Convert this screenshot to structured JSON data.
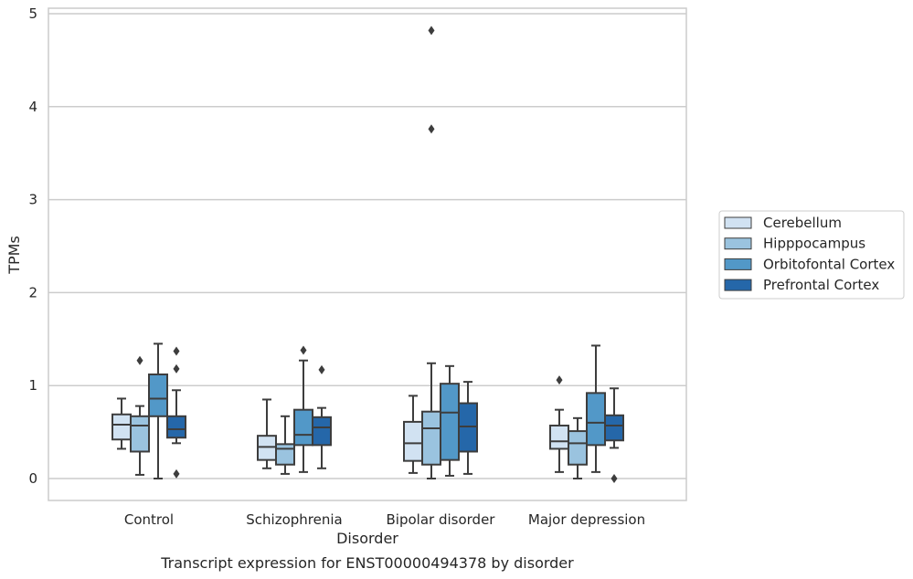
{
  "chart_data": {
    "type": "box",
    "xlabel": "Disorder",
    "ylabel": "TPMs",
    "caption": "Transcript expression for ENST00000494378 by disorder",
    "categories": [
      "Control",
      "Schizophrenia",
      "Bipolar disorder",
      "Major depression"
    ],
    "yticks": [
      0,
      1,
      2,
      3,
      4,
      5
    ],
    "ylim": [
      -0.23,
      5.07
    ],
    "grid": "horizontal",
    "legend_position": "right",
    "series": [
      {
        "name": "Cerebellum",
        "color": "#d1e2f2",
        "boxes": [
          {
            "whislo": 0.32,
            "q1": 0.42,
            "med": 0.58,
            "q3": 0.69,
            "whishi": 0.86,
            "fliers": []
          },
          {
            "whislo": 0.11,
            "q1": 0.2,
            "med": 0.34,
            "q3": 0.46,
            "whishi": 0.85,
            "fliers": []
          },
          {
            "whislo": 0.06,
            "q1": 0.19,
            "med": 0.38,
            "q3": 0.61,
            "whishi": 0.89,
            "fliers": []
          },
          {
            "whislo": 0.07,
            "q1": 0.32,
            "med": 0.4,
            "q3": 0.57,
            "whishi": 0.74,
            "fliers": [
              1.06
            ]
          }
        ]
      },
      {
        "name": "Hipppocampus",
        "color": "#9ac3df",
        "boxes": [
          {
            "whislo": 0.04,
            "q1": 0.29,
            "med": 0.57,
            "q3": 0.67,
            "whishi": 0.78,
            "fliers": [
              1.27
            ]
          },
          {
            "whislo": 0.05,
            "q1": 0.15,
            "med": 0.32,
            "q3": 0.37,
            "whishi": 0.67,
            "fliers": []
          },
          {
            "whislo": 0.0,
            "q1": 0.15,
            "med": 0.54,
            "q3": 0.72,
            "whishi": 1.24,
            "fliers": [
              4.82,
              3.76
            ]
          },
          {
            "whislo": 0.0,
            "q1": 0.15,
            "med": 0.38,
            "q3": 0.51,
            "whishi": 0.65,
            "fliers": []
          }
        ]
      },
      {
        "name": "Orbitofontal Cortex",
        "color": "#5298c8",
        "boxes": [
          {
            "whislo": 0.0,
            "q1": 0.67,
            "med": 0.86,
            "q3": 1.12,
            "whishi": 1.45,
            "fliers": []
          },
          {
            "whislo": 0.07,
            "q1": 0.36,
            "med": 0.47,
            "q3": 0.74,
            "whishi": 1.27,
            "fliers": [
              1.38
            ]
          },
          {
            "whislo": 0.03,
            "q1": 0.2,
            "med": 0.71,
            "q3": 1.02,
            "whishi": 1.21,
            "fliers": []
          },
          {
            "whislo": 0.07,
            "q1": 0.36,
            "med": 0.6,
            "q3": 0.92,
            "whishi": 1.43,
            "fliers": []
          }
        ]
      },
      {
        "name": "Prefrontal Cortex",
        "color": "#2567a9",
        "boxes": [
          {
            "whislo": 0.38,
            "q1": 0.44,
            "med": 0.53,
            "q3": 0.67,
            "whishi": 0.95,
            "fliers": [
              1.37,
              1.18,
              0.05
            ]
          },
          {
            "whislo": 0.11,
            "q1": 0.36,
            "med": 0.55,
            "q3": 0.66,
            "whishi": 0.76,
            "fliers": [
              1.17
            ]
          },
          {
            "whislo": 0.05,
            "q1": 0.29,
            "med": 0.56,
            "q3": 0.81,
            "whishi": 1.04,
            "fliers": []
          },
          {
            "whislo": 0.33,
            "q1": 0.41,
            "med": 0.57,
            "q3": 0.68,
            "whishi": 0.97,
            "fliers": [
              0.0
            ]
          }
        ]
      }
    ]
  }
}
